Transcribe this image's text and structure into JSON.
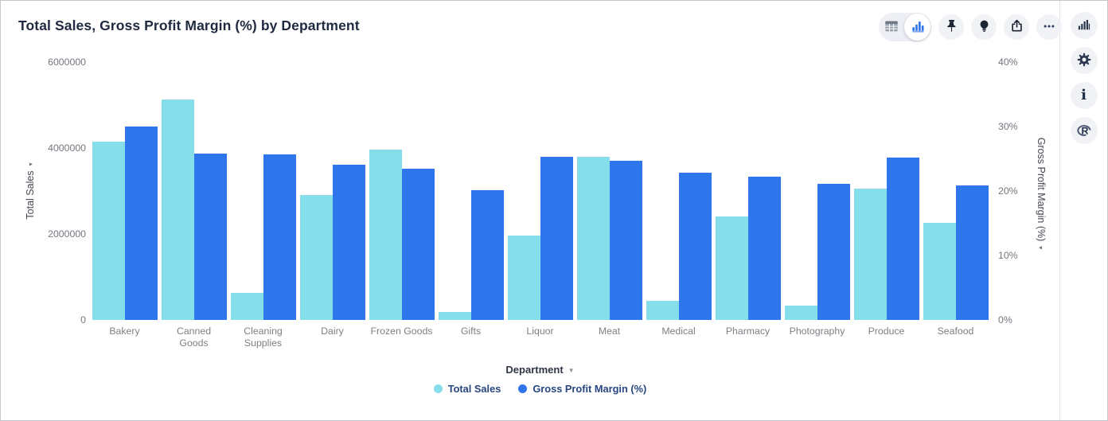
{
  "header": {
    "title": "Total Sales, Gross Profit Margin (%) by Department"
  },
  "toolbar": {
    "view_toggle": {
      "options": [
        "table-view",
        "chart-view"
      ],
      "active": "chart-view"
    },
    "actions": [
      {
        "name": "pin-icon"
      },
      {
        "name": "lightbulb-icon"
      },
      {
        "name": "share-icon"
      },
      {
        "name": "more-options-icon"
      }
    ]
  },
  "right_rail": {
    "icons": [
      "chart-type-icon",
      "settings-gear-icon",
      "info-icon",
      "r-logo-icon"
    ]
  },
  "colors": {
    "total_sales": "#85DEE9",
    "gross_profit_margin": "#2F75EC",
    "active_icon": "#2F75EC",
    "dark_icon": "#26334d"
  },
  "chart_data": {
    "type": "bar",
    "title": "Total Sales, Gross Profit Margin (%) by Department",
    "grid": false,
    "legend_position": "bottom",
    "categories": [
      "Bakery",
      "Canned Goods",
      "Cleaning Supplies",
      "Dairy",
      "Frozen Goods",
      "Gifts",
      "Liquor",
      "Meat",
      "Medical",
      "Pharmacy",
      "Photography",
      "Produce",
      "Seafood"
    ],
    "series": [
      {
        "name": "Total Sales",
        "axis": "left",
        "color": "#85DEE9",
        "values": [
          4140000,
          5130000,
          630000,
          2900000,
          3960000,
          180000,
          1970000,
          3790000,
          440000,
          2410000,
          340000,
          3050000,
          2260000
        ]
      },
      {
        "name": "Gross Profit Margin (%)",
        "axis": "right",
        "color": "#2F75EC",
        "values": [
          30.0,
          25.8,
          25.7,
          24.1,
          23.4,
          20.1,
          25.3,
          24.7,
          22.8,
          22.2,
          21.1,
          25.2,
          20.9
        ]
      }
    ],
    "left_axis": {
      "label": "Total Sales",
      "min": 0,
      "max": 6000000,
      "ticks": [
        {
          "label": "6000000",
          "value": 6000000
        },
        {
          "label": "4000000",
          "value": 4000000
        },
        {
          "label": "2000000",
          "value": 2000000
        },
        {
          "label": "0",
          "value": 0
        }
      ]
    },
    "right_axis": {
      "label": "Gross Profit Margin (%)",
      "min": 0,
      "max": 40,
      "ticks": [
        {
          "label": "40%",
          "value": 40
        },
        {
          "label": "30%",
          "value": 30
        },
        {
          "label": "20%",
          "value": 20
        },
        {
          "label": "10%",
          "value": 10
        },
        {
          "label": "0%",
          "value": 0
        }
      ]
    },
    "x_axis": {
      "label": "Department"
    }
  }
}
